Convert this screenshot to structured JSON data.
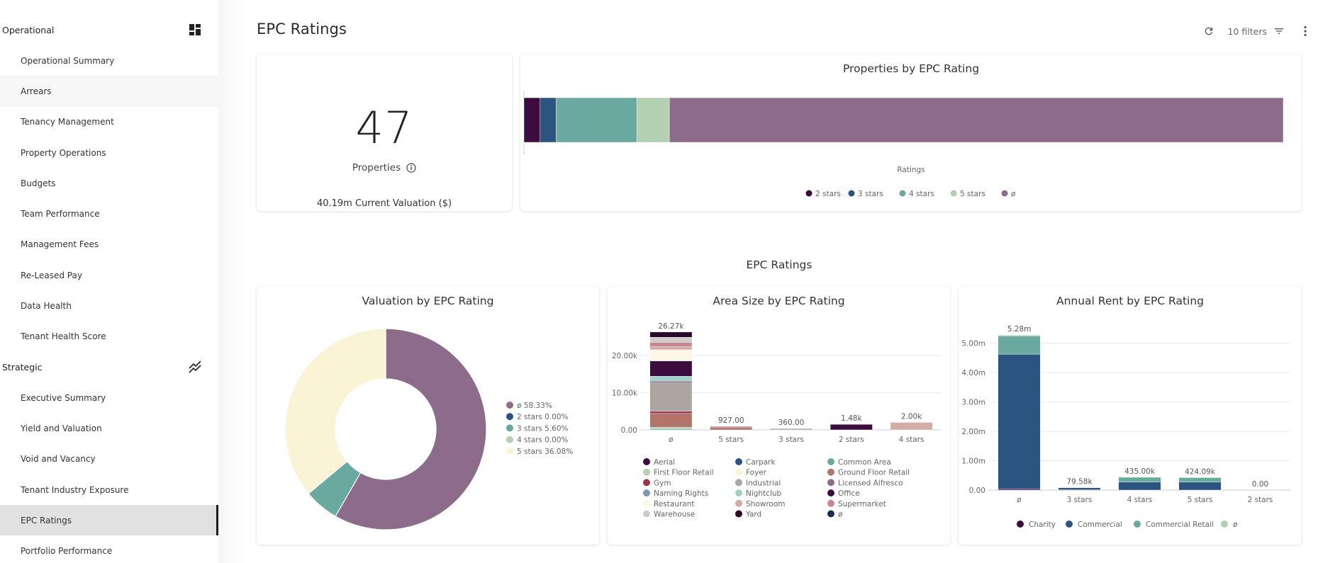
{
  "sidebar": {
    "sections": [
      {
        "label": "Operational",
        "icon": "dashboard-icon",
        "items": [
          {
            "label": "Operational Summary"
          },
          {
            "label": "Arrears",
            "state": "hover"
          },
          {
            "label": "Tenancy Management"
          },
          {
            "label": "Property Operations"
          },
          {
            "label": "Budgets"
          },
          {
            "label": "Team Performance"
          },
          {
            "label": "Management Fees"
          },
          {
            "label": "Re-Leased Pay"
          },
          {
            "label": "Data Health"
          },
          {
            "label": "Tenant Health Score"
          }
        ]
      },
      {
        "label": "Strategic",
        "icon": "trend-lines-icon",
        "items": [
          {
            "label": "Executive Summary"
          },
          {
            "label": "Yield and Valuation"
          },
          {
            "label": "Void and Vacancy"
          },
          {
            "label": "Tenant Industry Exposure"
          },
          {
            "label": "EPC Ratings",
            "state": "active"
          },
          {
            "label": "Portfolio Performance"
          }
        ]
      }
    ]
  },
  "header": {
    "title": "EPC Ratings",
    "refresh_icon": "refresh-icon",
    "filters_label": "10 filters",
    "filter_icon": "filter-icon",
    "more_icon": "more-vertical-icon"
  },
  "kpi": {
    "value": "47",
    "label": "Properties",
    "info_icon": "info-icon",
    "subtext": "40.19m Current Valuation ($)"
  },
  "section_title": "EPC Ratings",
  "colors": {
    "2 stars": "#3d0c3e",
    "3 stars": "#2b5580",
    "4 stars": "#6aa9a0",
    "5 stars": "#b2d1b0",
    "ø": "#8d6b8b"
  },
  "chart_data": [
    {
      "type": "bar",
      "orientation": "horizontal-stacked",
      "title": "Properties by EPC Rating",
      "xlabel": "Ratings",
      "legend_position": "bottom",
      "categories": [
        "Properties"
      ],
      "series": [
        {
          "name": "2 stars",
          "color": "#3d0c3e",
          "values": [
            1
          ]
        },
        {
          "name": "3 stars",
          "color": "#2b5580",
          "values": [
            1
          ]
        },
        {
          "name": "4 stars",
          "color": "#6aa9a0",
          "values": [
            5
          ]
        },
        {
          "name": "5 stars",
          "color": "#b2d1b0",
          "values": [
            2
          ]
        },
        {
          "name": "ø",
          "color": "#8d6b8b",
          "values": [
            38
          ]
        }
      ],
      "xlim": [
        0,
        47
      ]
    },
    {
      "type": "pie",
      "variant": "donut",
      "title": "Valuation by EPC Rating",
      "legend_position": "right",
      "slices": [
        {
          "name": "ø",
          "value": 58.33,
          "label": "ø 58.33%",
          "color": "#8d6b8b"
        },
        {
          "name": "2 stars",
          "value": 0.0,
          "label": "2 stars 0.00%",
          "color": "#2b5580"
        },
        {
          "name": "3 stars",
          "value": 5.6,
          "label": "3 stars 5.60%",
          "color": "#6aa9a0"
        },
        {
          "name": "4 stars",
          "value": 0.0,
          "label": "4 stars 0.00%",
          "color": "#b2d1b0"
        },
        {
          "name": "5 stars",
          "value": 36.08,
          "label": "5 stars 36.08%",
          "color": "#fbf3d5"
        }
      ]
    },
    {
      "type": "bar",
      "orientation": "vertical-stacked",
      "title": "Area Size by EPC Rating",
      "legend_position": "bottom",
      "categories": [
        "ø",
        "5 stars",
        "3 stars",
        "2 stars",
        "4 stars"
      ],
      "totals_labels": [
        "26.27k",
        "927.00",
        "360.00",
        "1.48k",
        "2.00k"
      ],
      "ylim": [
        0,
        27000
      ],
      "yticks": [
        0,
        10000,
        20000
      ],
      "ytick_labels": [
        "0.00",
        "10.00k",
        "20.00k"
      ],
      "grid": true,
      "series": [
        {
          "name": "Aerial",
          "color": "#3d0c3e",
          "values": [
            0,
            0,
            0,
            0,
            0
          ]
        },
        {
          "name": "Carpark",
          "color": "#2b5580",
          "values": [
            0,
            0,
            0,
            0,
            0
          ]
        },
        {
          "name": "Common Area",
          "color": "#6aa9a0",
          "values": [
            300,
            0,
            0,
            0,
            0
          ]
        },
        {
          "name": "First Floor Retail",
          "color": "#b2d1b0",
          "values": [
            400,
            0,
            0,
            0,
            0
          ]
        },
        {
          "name": "Foyer",
          "color": "#fbf3d5",
          "values": [
            0,
            0,
            0,
            0,
            0
          ]
        },
        {
          "name": "Ground Floor Retail",
          "color": "#b3756b",
          "values": [
            3700,
            727,
            0,
            0,
            0
          ]
        },
        {
          "name": "Gym",
          "color": "#a0364c",
          "values": [
            600,
            0,
            0,
            0,
            0
          ]
        },
        {
          "name": "Industrial",
          "color": "#aba6a1",
          "values": [
            7600,
            0,
            360,
            0,
            0
          ]
        },
        {
          "name": "Licensed Alfresco",
          "color": "#8d6b8b",
          "values": [
            500,
            200,
            0,
            0,
            0
          ]
        },
        {
          "name": "Naming Rights",
          "color": "#7d98b3",
          "values": [
            0,
            0,
            0,
            0,
            0
          ]
        },
        {
          "name": "Nightclub",
          "color": "#a3cfc9",
          "values": [
            1300,
            0,
            0,
            0,
            0
          ]
        },
        {
          "name": "Office",
          "color": "#3d0c3e",
          "values": [
            4100,
            0,
            0,
            1480,
            0
          ]
        },
        {
          "name": "Restaurant",
          "color": "#fdf7e7",
          "values": [
            3000,
            0,
            0,
            0,
            0
          ]
        },
        {
          "name": "Showroom",
          "color": "#d4aca6",
          "values": [
            900,
            0,
            0,
            0,
            2000
          ]
        },
        {
          "name": "Supermarket",
          "color": "#c48794",
          "values": [
            1100,
            0,
            0,
            0,
            0
          ]
        },
        {
          "name": "Warehouse",
          "color": "#cfcbc8",
          "values": [
            1370,
            0,
            0,
            0,
            0
          ]
        },
        {
          "name": "Yard",
          "color": "#2a0a2a",
          "values": [
            1400,
            0,
            0,
            0,
            0
          ]
        },
        {
          "name": "ø",
          "color": "#18304b",
          "values": [
            0,
            0,
            0,
            0,
            0
          ]
        }
      ]
    },
    {
      "type": "bar",
      "orientation": "vertical-stacked",
      "title": "Annual Rent by EPC Rating",
      "legend_position": "bottom",
      "categories": [
        "ø",
        "3 stars",
        "4 stars",
        "5 stars",
        "2 stars"
      ],
      "totals_labels": [
        "5.28m",
        "79.58k",
        "435.00k",
        "424.09k",
        "0.00"
      ],
      "ylim": [
        0,
        5500000
      ],
      "yticks": [
        0,
        1000000,
        2000000,
        3000000,
        4000000,
        5000000
      ],
      "ytick_labels": [
        "0.00",
        "1.00m",
        "2.00m",
        "3.00m",
        "4.00m",
        "5.00m"
      ],
      "grid": true,
      "series": [
        {
          "name": "Charity",
          "color": "#3d0c3e",
          "values": [
            40000,
            10000,
            0,
            0,
            0
          ]
        },
        {
          "name": "Commercial",
          "color": "#2b5580",
          "values": [
            4590000,
            69580,
            270000,
            270000,
            0
          ]
        },
        {
          "name": "Commercial Retail",
          "color": "#6aa9a0",
          "values": [
            620000,
            0,
            165000,
            154090,
            0
          ]
        },
        {
          "name": "ø",
          "color": "#b2d1b0",
          "values": [
            30000,
            0,
            0,
            0,
            0
          ]
        }
      ]
    }
  ]
}
